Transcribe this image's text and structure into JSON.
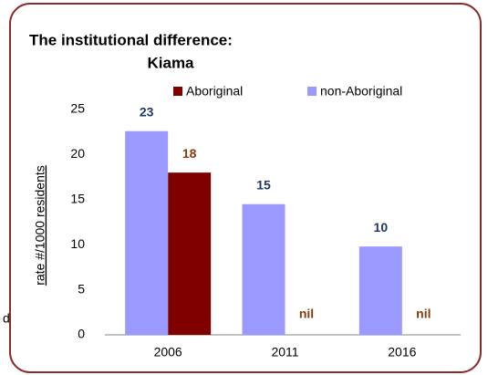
{
  "background_text": "d",
  "chart_data": {
    "type": "bar",
    "title": [
      "The institutional difference:",
      "Kiama"
    ],
    "ylabel": "rate #/1000 residents",
    "categories": [
      "2006",
      "2011",
      "2016"
    ],
    "series": [
      {
        "name": "Aboriginal",
        "color": "#800000",
        "label_color": "#843c0c",
        "values": [
          18,
          0,
          0
        ],
        "value_labels": [
          "18",
          "nil",
          "nil"
        ]
      },
      {
        "name": "non-Aboriginal",
        "color": "#9999ff",
        "label_color": "#1f3864",
        "values": [
          22.6,
          14.5,
          9.8
        ],
        "value_labels": [
          "23",
          "15",
          "10"
        ]
      }
    ],
    "ylim": [
      0,
      25
    ],
    "yticks": [
      0,
      5,
      10,
      15,
      20,
      25
    ],
    "grid": false,
    "legend": "top"
  }
}
